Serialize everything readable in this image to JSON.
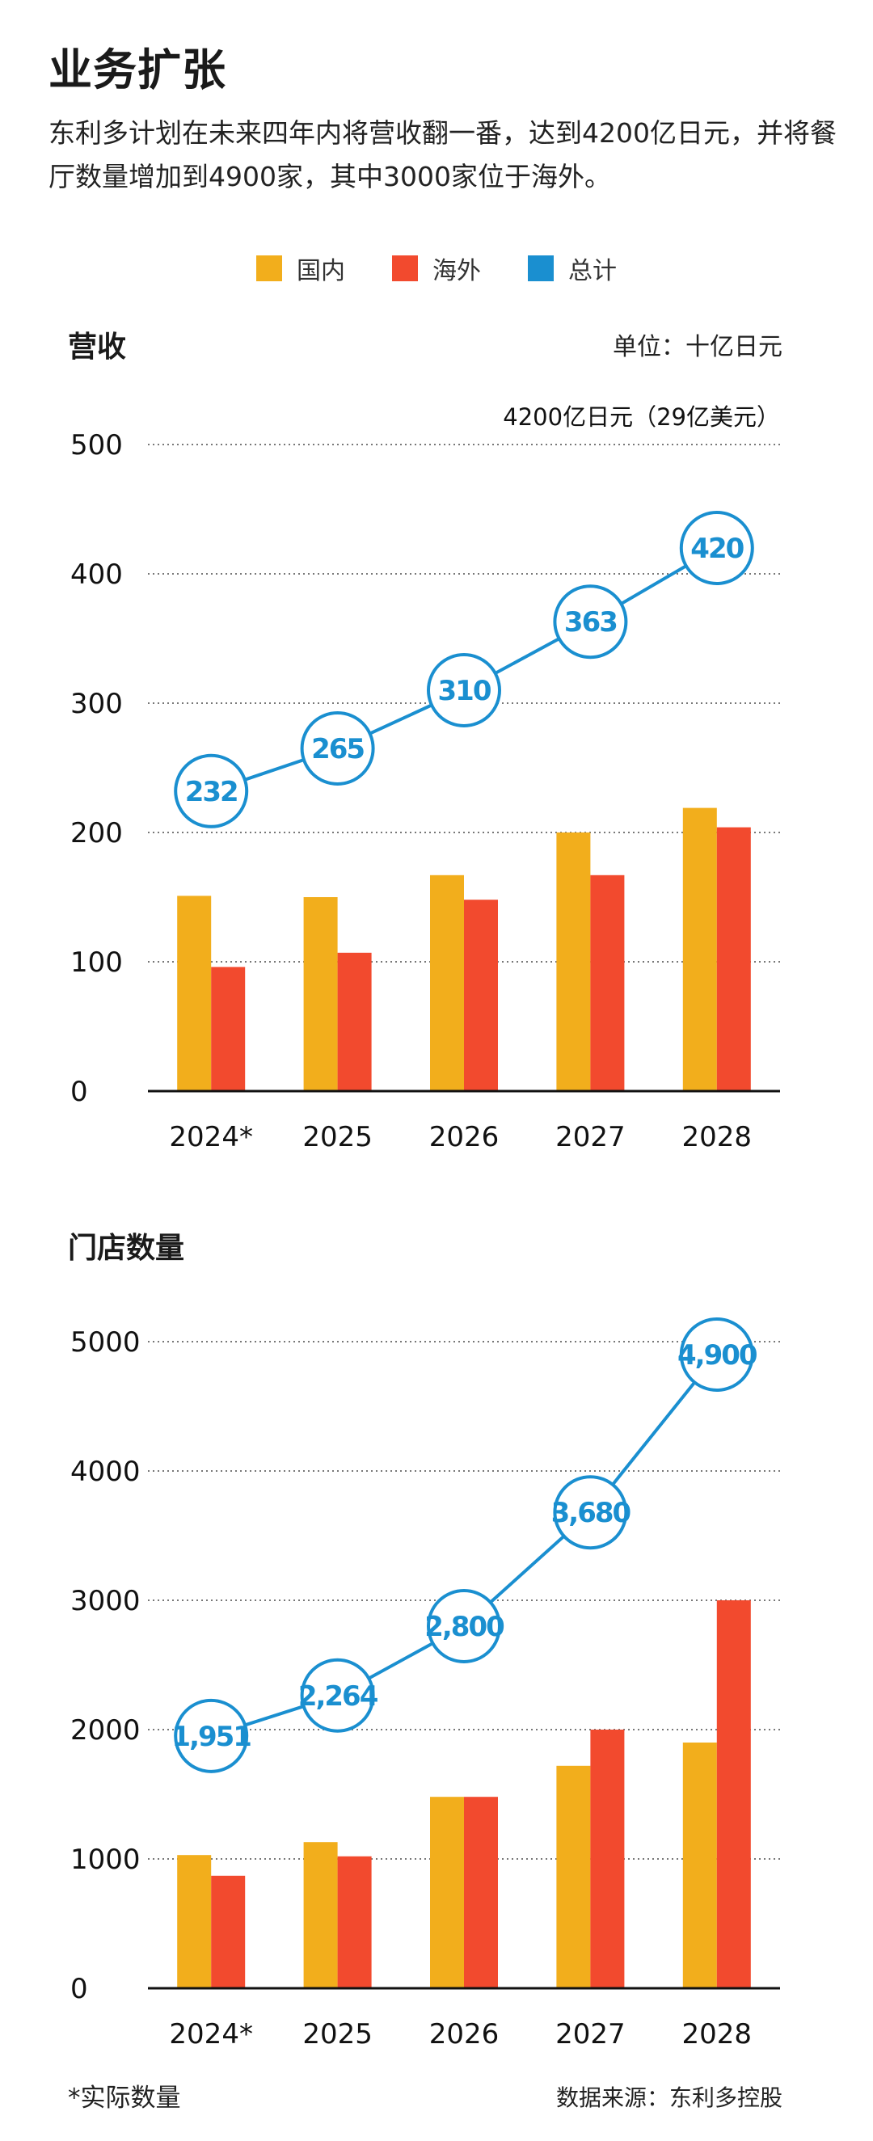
{
  "title": "业务扩张",
  "subtitle": "东利多计划在未来四年内将营收翻一番，达到4200亿日元，并将餐厅数量增加到4900家，其中3000家位于海外。",
  "legend": [
    {
      "label": "国内",
      "color": "#F2AE1C"
    },
    {
      "label": "海外",
      "color": "#F24A2E"
    },
    {
      "label": "总计",
      "color": "#1A8FD0"
    }
  ],
  "footnote": "*实际数量",
  "source": "数据来源：东利多控股",
  "chart_data": [
    {
      "type": "bar",
      "title": "营收",
      "unit": "单位：十亿日元",
      "annotation": "4200亿日元（29亿美元）",
      "categories": [
        "2024*",
        "2025",
        "2026",
        "2027",
        "2028"
      ],
      "series": [
        {
          "name": "国内",
          "values": [
            151,
            150,
            167,
            200,
            219
          ]
        },
        {
          "name": "海外",
          "values": [
            96,
            107,
            148,
            167,
            204
          ]
        },
        {
          "name": "总计",
          "values": [
            232,
            265,
            310,
            363,
            420
          ],
          "labels": [
            "232",
            "265",
            "310",
            "363",
            "420"
          ]
        }
      ],
      "yticks": [
        0,
        100,
        200,
        300,
        400,
        500
      ],
      "ylim": [
        0,
        500
      ]
    },
    {
      "type": "bar",
      "title": "门店数量",
      "categories": [
        "2024*",
        "2025",
        "2026",
        "2027",
        "2028"
      ],
      "series": [
        {
          "name": "国内",
          "values": [
            1030,
            1130,
            1480,
            1720,
            1900
          ]
        },
        {
          "name": "海外",
          "values": [
            870,
            1020,
            1480,
            2000,
            3000
          ]
        },
        {
          "name": "总计",
          "values": [
            1951,
            2264,
            2800,
            3680,
            4900
          ],
          "labels": [
            "1,951",
            "2,264",
            "2,800",
            "3,680",
            "4,900"
          ]
        }
      ],
      "yticks": [
        0,
        1000,
        2000,
        3000,
        4000,
        5000
      ],
      "ylim": [
        0,
        5000
      ]
    }
  ]
}
